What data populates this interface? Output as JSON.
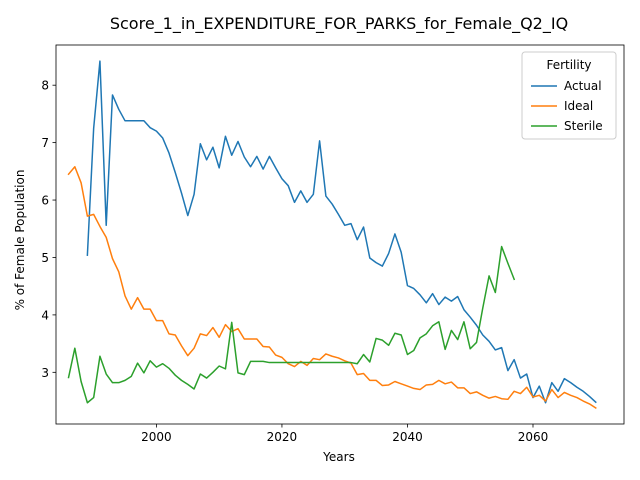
{
  "chart_data": {
    "type": "line",
    "title": "Score_1_in_EXPENDITURE_FOR_PARKS_for_Female_Q2_IQ",
    "xlabel": "Years",
    "ylabel": "% of Female Population",
    "xlim": [
      1984,
      2074.5
    ],
    "ylim": [
      2.1,
      8.7
    ],
    "x_ticks": [
      2000,
      2020,
      2040,
      2060
    ],
    "y_ticks": [
      3,
      4,
      5,
      6,
      7,
      8
    ],
    "grid": false,
    "legend": {
      "title": "Fertility",
      "placement": "top-right"
    },
    "series": [
      {
        "name": "Actual",
        "color": "#1f77b4",
        "points": [
          [
            1989,
            5.04
          ],
          [
            1990,
            7.25
          ],
          [
            1991,
            8.42
          ],
          [
            1992,
            5.56
          ],
          [
            1993,
            7.83
          ],
          [
            1994,
            7.58
          ],
          [
            1995,
            7.38
          ],
          [
            1996,
            7.38
          ],
          [
            1997,
            7.38
          ],
          [
            1998,
            7.38
          ],
          [
            1999,
            7.26
          ],
          [
            2000,
            7.2
          ],
          [
            2001,
            7.08
          ],
          [
            2002,
            6.82
          ],
          [
            2003,
            6.48
          ],
          [
            2004,
            6.12
          ],
          [
            2005,
            5.73
          ],
          [
            2006,
            6.1
          ],
          [
            2007,
            6.98
          ],
          [
            2008,
            6.7
          ],
          [
            2009,
            6.92
          ],
          [
            2010,
            6.56
          ],
          [
            2011,
            7.11
          ],
          [
            2012,
            6.78
          ],
          [
            2013,
            7.02
          ],
          [
            2014,
            6.75
          ],
          [
            2015,
            6.58
          ],
          [
            2016,
            6.76
          ],
          [
            2017,
            6.54
          ],
          [
            2018,
            6.76
          ],
          [
            2019,
            6.56
          ],
          [
            2020,
            6.37
          ],
          [
            2021,
            6.25
          ],
          [
            2022,
            5.96
          ],
          [
            2023,
            6.16
          ],
          [
            2024,
            5.96
          ],
          [
            2025,
            6.1
          ],
          [
            2026,
            7.03
          ],
          [
            2027,
            6.07
          ],
          [
            2028,
            5.93
          ],
          [
            2029,
            5.75
          ],
          [
            2030,
            5.56
          ],
          [
            2031,
            5.59
          ],
          [
            2032,
            5.31
          ],
          [
            2033,
            5.53
          ],
          [
            2034,
            4.99
          ],
          [
            2035,
            4.91
          ],
          [
            2036,
            4.85
          ],
          [
            2037,
            5.07
          ],
          [
            2038,
            5.41
          ],
          [
            2039,
            5.09
          ],
          [
            2040,
            4.51
          ],
          [
            2041,
            4.46
          ],
          [
            2042,
            4.35
          ],
          [
            2043,
            4.21
          ],
          [
            2044,
            4.37
          ],
          [
            2045,
            4.18
          ],
          [
            2046,
            4.31
          ],
          [
            2047,
            4.24
          ],
          [
            2048,
            4.32
          ],
          [
            2049,
            4.09
          ],
          [
            2050,
            3.96
          ],
          [
            2051,
            3.82
          ],
          [
            2052,
            3.65
          ],
          [
            2053,
            3.54
          ],
          [
            2054,
            3.39
          ],
          [
            2055,
            3.43
          ],
          [
            2056,
            3.03
          ],
          [
            2057,
            3.22
          ],
          [
            2058,
            2.9
          ],
          [
            2059,
            2.97
          ],
          [
            2060,
            2.56
          ],
          [
            2061,
            2.76
          ],
          [
            2062,
            2.47
          ],
          [
            2063,
            2.82
          ],
          [
            2064,
            2.67
          ],
          [
            2065,
            2.89
          ],
          [
            2066,
            2.82
          ],
          [
            2067,
            2.74
          ],
          [
            2068,
            2.67
          ],
          [
            2069,
            2.58
          ],
          [
            2070,
            2.48
          ]
        ]
      },
      {
        "name": "Ideal",
        "color": "#ff7f0e",
        "points": [
          [
            1986,
            6.45
          ],
          [
            1987,
            6.58
          ],
          [
            1988,
            6.3
          ],
          [
            1989,
            5.72
          ],
          [
            1990,
            5.75
          ],
          [
            1991,
            5.54
          ],
          [
            1992,
            5.35
          ],
          [
            1993,
            4.98
          ],
          [
            1994,
            4.75
          ],
          [
            1995,
            4.33
          ],
          [
            1996,
            4.1
          ],
          [
            1997,
            4.3
          ],
          [
            1998,
            4.1
          ],
          [
            1999,
            4.1
          ],
          [
            2000,
            3.9
          ],
          [
            2001,
            3.9
          ],
          [
            2002,
            3.67
          ],
          [
            2003,
            3.65
          ],
          [
            2004,
            3.46
          ],
          [
            2005,
            3.29
          ],
          [
            2006,
            3.42
          ],
          [
            2007,
            3.67
          ],
          [
            2008,
            3.64
          ],
          [
            2009,
            3.78
          ],
          [
            2010,
            3.61
          ],
          [
            2011,
            3.83
          ],
          [
            2012,
            3.71
          ],
          [
            2013,
            3.76
          ],
          [
            2014,
            3.58
          ],
          [
            2015,
            3.58
          ],
          [
            2016,
            3.58
          ],
          [
            2017,
            3.45
          ],
          [
            2018,
            3.44
          ],
          [
            2019,
            3.3
          ],
          [
            2020,
            3.26
          ],
          [
            2021,
            3.15
          ],
          [
            2022,
            3.1
          ],
          [
            2023,
            3.19
          ],
          [
            2024,
            3.12
          ],
          [
            2025,
            3.24
          ],
          [
            2026,
            3.22
          ],
          [
            2027,
            3.32
          ],
          [
            2028,
            3.28
          ],
          [
            2029,
            3.25
          ],
          [
            2030,
            3.2
          ],
          [
            2031,
            3.16
          ],
          [
            2032,
            2.96
          ],
          [
            2033,
            2.98
          ],
          [
            2034,
            2.86
          ],
          [
            2035,
            2.86
          ],
          [
            2036,
            2.77
          ],
          [
            2037,
            2.78
          ],
          [
            2038,
            2.84
          ],
          [
            2039,
            2.8
          ],
          [
            2040,
            2.76
          ],
          [
            2041,
            2.72
          ],
          [
            2042,
            2.7
          ],
          [
            2043,
            2.78
          ],
          [
            2044,
            2.79
          ],
          [
            2045,
            2.86
          ],
          [
            2046,
            2.8
          ],
          [
            2047,
            2.83
          ],
          [
            2048,
            2.73
          ],
          [
            2049,
            2.73
          ],
          [
            2050,
            2.63
          ],
          [
            2051,
            2.66
          ],
          [
            2052,
            2.6
          ],
          [
            2053,
            2.55
          ],
          [
            2054,
            2.58
          ],
          [
            2055,
            2.54
          ],
          [
            2056,
            2.53
          ],
          [
            2057,
            2.67
          ],
          [
            2058,
            2.63
          ],
          [
            2059,
            2.74
          ],
          [
            2060,
            2.57
          ],
          [
            2061,
            2.6
          ],
          [
            2062,
            2.5
          ],
          [
            2063,
            2.7
          ],
          [
            2064,
            2.56
          ],
          [
            2065,
            2.65
          ],
          [
            2066,
            2.6
          ],
          [
            2067,
            2.56
          ],
          [
            2068,
            2.5
          ],
          [
            2069,
            2.45
          ],
          [
            2070,
            2.38
          ]
        ]
      },
      {
        "name": "Sterile",
        "color": "#2ca02c",
        "points": [
          [
            1986,
            2.91
          ],
          [
            1987,
            3.42
          ],
          [
            1988,
            2.84
          ],
          [
            1989,
            2.47
          ],
          [
            1990,
            2.56
          ],
          [
            1991,
            3.28
          ],
          [
            1992,
            2.97
          ],
          [
            1993,
            2.82
          ],
          [
            1994,
            2.82
          ],
          [
            1995,
            2.86
          ],
          [
            1996,
            2.93
          ],
          [
            1997,
            3.16
          ],
          [
            1998,
            2.99
          ],
          [
            1999,
            3.2
          ],
          [
            2000,
            3.09
          ],
          [
            2001,
            3.15
          ],
          [
            2002,
            3.07
          ],
          [
            2003,
            2.95
          ],
          [
            2004,
            2.86
          ],
          [
            2005,
            2.79
          ],
          [
            2006,
            2.71
          ],
          [
            2007,
            2.97
          ],
          [
            2008,
            2.9
          ],
          [
            2009,
            3.0
          ],
          [
            2010,
            3.11
          ],
          [
            2011,
            3.06
          ],
          [
            2012,
            3.87
          ],
          [
            2013,
            2.99
          ],
          [
            2014,
            2.96
          ],
          [
            2015,
            3.19
          ],
          [
            2016,
            3.19
          ],
          [
            2017,
            3.19
          ],
          [
            2018,
            3.17
          ],
          [
            2019,
            3.17
          ],
          [
            2020,
            3.17
          ],
          [
            2021,
            3.17
          ],
          [
            2022,
            3.17
          ],
          [
            2023,
            3.17
          ],
          [
            2024,
            3.17
          ],
          [
            2025,
            3.17
          ],
          [
            2026,
            3.17
          ],
          [
            2027,
            3.17
          ],
          [
            2028,
            3.17
          ],
          [
            2029,
            3.17
          ],
          [
            2030,
            3.17
          ],
          [
            2031,
            3.17
          ],
          [
            2032,
            3.15
          ],
          [
            2033,
            3.31
          ],
          [
            2034,
            3.18
          ],
          [
            2035,
            3.59
          ],
          [
            2036,
            3.56
          ],
          [
            2037,
            3.47
          ],
          [
            2038,
            3.68
          ],
          [
            2039,
            3.65
          ],
          [
            2040,
            3.31
          ],
          [
            2041,
            3.38
          ],
          [
            2042,
            3.6
          ],
          [
            2043,
            3.67
          ],
          [
            2044,
            3.81
          ],
          [
            2045,
            3.88
          ],
          [
            2046,
            3.4
          ],
          [
            2047,
            3.73
          ],
          [
            2048,
            3.57
          ],
          [
            2049,
            3.88
          ],
          [
            2050,
            3.41
          ],
          [
            2051,
            3.52
          ],
          [
            2052,
            4.12
          ],
          [
            2053,
            4.68
          ],
          [
            2054,
            4.39
          ],
          [
            2055,
            5.19
          ],
          [
            2056,
            4.9
          ],
          [
            2057,
            4.62
          ]
        ]
      }
    ]
  }
}
